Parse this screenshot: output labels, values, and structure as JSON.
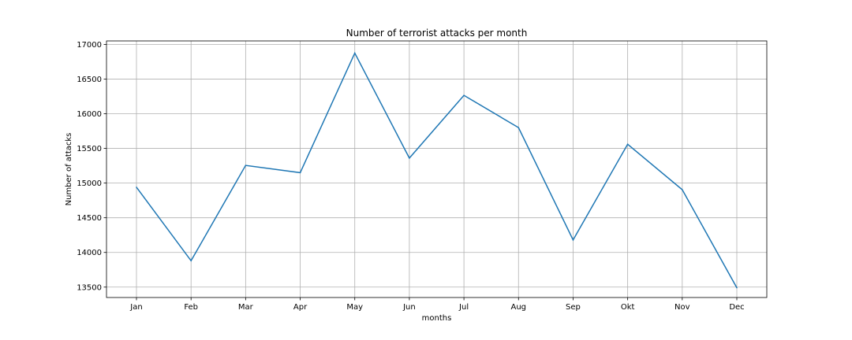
{
  "chart_data": {
    "type": "line",
    "title": "Number of terrorist attacks per month",
    "xlabel": "months",
    "ylabel": "Number of attacks",
    "categories": [
      "Jan",
      "Feb",
      "Mar",
      "Apr",
      "May",
      "Jun",
      "Jul",
      "Aug",
      "Sep",
      "Okt",
      "Nov",
      "Dec"
    ],
    "series": [
      {
        "values": [
          14940,
          13880,
          15255,
          15150,
          16875,
          15360,
          16265,
          15800,
          14180,
          15560,
          14905,
          13490
        ],
        "color": "#1f77b4"
      }
    ],
    "ylim": [
      13350,
      17050
    ],
    "yticks": [
      13500,
      14000,
      14500,
      15000,
      15500,
      16000,
      16500,
      17000
    ],
    "grid": true
  }
}
